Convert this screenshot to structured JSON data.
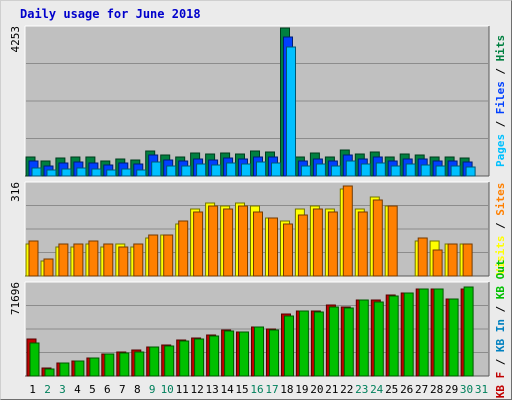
{
  "title": "Daily usage for June 2018",
  "colors": {
    "hits": "#008040",
    "files": "#0040ff",
    "pages": "#00c0ff",
    "visits": "#ffff00",
    "sites": "#ff8000",
    "kb_in": "#0080c0",
    "kb_out": "#00c000",
    "kb_f": "#c00000",
    "weekend_day_label": "#00805c",
    "day_label": "#000000",
    "plot_background": "#c0c0c0"
  },
  "chart_data": [
    {
      "type": "bar",
      "ymax_label": "4253",
      "ylim": [
        0,
        4253
      ],
      "grid": true,
      "legend_placement": "right",
      "legend": [
        {
          "label": "Pages",
          "color_key": "pages"
        },
        {
          "label": "Files",
          "color_key": "files"
        },
        {
          "label": "Hits",
          "color_key": "hits"
        }
      ],
      "categories": [
        "1",
        "2",
        "3",
        "4",
        "5",
        "6",
        "7",
        "8",
        "9",
        "10",
        "11",
        "12",
        "13",
        "14",
        "15",
        "16",
        "17",
        "18",
        "19",
        "20",
        "21",
        "22",
        "23",
        "24",
        "25",
        "26",
        "27",
        "28",
        "29",
        "30",
        "31"
      ],
      "series": [
        {
          "name": "Hits",
          "color_key": "hits",
          "values": [
            560,
            420,
            520,
            560,
            540,
            420,
            500,
            460,
            720,
            600,
            560,
            660,
            620,
            660,
            620,
            720,
            700,
            4253,
            560,
            660,
            540,
            760,
            640,
            700,
            560,
            640,
            600,
            560,
            560,
            520,
            0
          ]
        },
        {
          "name": "Files",
          "color_key": "files",
          "values": [
            420,
            300,
            380,
            400,
            380,
            320,
            380,
            340,
            600,
            460,
            440,
            500,
            460,
            520,
            480,
            560,
            540,
            4000,
            420,
            500,
            420,
            600,
            500,
            560,
            440,
            500,
            480,
            440,
            440,
            400,
            0
          ]
        },
        {
          "name": "Pages",
          "color_key": "pages",
          "values": [
            220,
            160,
            200,
            220,
            200,
            170,
            200,
            180,
            400,
            300,
            280,
            340,
            320,
            360,
            340,
            400,
            380,
            3700,
            280,
            340,
            280,
            420,
            340,
            380,
            300,
            340,
            320,
            300,
            300,
            260,
            0
          ]
        }
      ]
    },
    {
      "type": "bar",
      "ymax_label": "316",
      "ylim": [
        0,
        316
      ],
      "grid": true,
      "legend_placement": "right",
      "legend": [
        {
          "label": "Visits",
          "color_key": "visits"
        },
        {
          "label": "Sites",
          "color_key": "sites"
        }
      ],
      "categories": [
        "1",
        "2",
        "3",
        "4",
        "5",
        "6",
        "7",
        "8",
        "9",
        "10",
        "11",
        "12",
        "13",
        "14",
        "15",
        "16",
        "17",
        "18",
        "19",
        "20",
        "21",
        "22",
        "23",
        "24",
        "25",
        "26",
        "27",
        "28",
        "29",
        "30",
        "31"
      ],
      "series": [
        {
          "name": "Visits",
          "color_key": "visits",
          "values": [
            110,
            50,
            100,
            100,
            110,
            100,
            110,
            100,
            130,
            140,
            180,
            230,
            250,
            240,
            250,
            240,
            200,
            190,
            230,
            240,
            230,
            300,
            230,
            270,
            240,
            0,
            120,
            120,
            110,
            110,
            0
          ]
        },
        {
          "name": "Sites",
          "color_key": "sites",
          "values": [
            120,
            60,
            110,
            110,
            120,
            110,
            100,
            110,
            140,
            140,
            190,
            220,
            240,
            230,
            240,
            220,
            200,
            180,
            210,
            230,
            220,
            310,
            220,
            260,
            240,
            0,
            130,
            90,
            110,
            110,
            0
          ]
        }
      ]
    },
    {
      "type": "bar",
      "ymax_label": "71696",
      "ylim": [
        0,
        71696
      ],
      "grid": true,
      "legend_placement": "right",
      "legend": [
        {
          "label": "KB F",
          "color_key": "kb_f"
        },
        {
          "label": "KB In",
          "color_key": "kb_in"
        },
        {
          "label": "KB Out",
          "color_key": "kb_out"
        }
      ],
      "categories": [
        "1",
        "2",
        "3",
        "4",
        "5",
        "6",
        "7",
        "8",
        "9",
        "10",
        "11",
        "12",
        "13",
        "14",
        "15",
        "16",
        "17",
        "18",
        "19",
        "20",
        "21",
        "22",
        "23",
        "24",
        "25",
        "26",
        "27",
        "28",
        "29",
        "30",
        "31"
      ],
      "series": [
        {
          "name": "KB F",
          "color_key": "kb_f",
          "values": [
            28500,
            6000,
            10500,
            12000,
            14000,
            17000,
            19000,
            20000,
            22500,
            24500,
            28000,
            29500,
            32000,
            36000,
            34000,
            38000,
            37000,
            48000,
            51000,
            51000,
            55000,
            54000,
            59000,
            59000,
            63000,
            65000,
            68000,
            68000,
            60000,
            68000,
            0
          ]
        },
        {
          "name": "KB Out",
          "color_key": "kb_out",
          "values": [
            26000,
            5500,
            10500,
            12000,
            14000,
            17000,
            18000,
            19000,
            22500,
            23500,
            27000,
            29000,
            31000,
            35000,
            34000,
            38000,
            36000,
            47000,
            51000,
            50000,
            54000,
            53000,
            59000,
            58000,
            62000,
            65000,
            68000,
            68000,
            60000,
            69000,
            0
          ]
        }
      ]
    }
  ],
  "day_labels": [
    {
      "text": "1",
      "weekend": false
    },
    {
      "text": "2",
      "weekend": true
    },
    {
      "text": "3",
      "weekend": true
    },
    {
      "text": "4",
      "weekend": false
    },
    {
      "text": "5",
      "weekend": false
    },
    {
      "text": "6",
      "weekend": false
    },
    {
      "text": "7",
      "weekend": false
    },
    {
      "text": "8",
      "weekend": false
    },
    {
      "text": "9",
      "weekend": true
    },
    {
      "text": "10",
      "weekend": true
    },
    {
      "text": "11",
      "weekend": false
    },
    {
      "text": "12",
      "weekend": false
    },
    {
      "text": "13",
      "weekend": false
    },
    {
      "text": "14",
      "weekend": false
    },
    {
      "text": "15",
      "weekend": false
    },
    {
      "text": "16",
      "weekend": true
    },
    {
      "text": "17",
      "weekend": true
    },
    {
      "text": "18",
      "weekend": false
    },
    {
      "text": "19",
      "weekend": false
    },
    {
      "text": "20",
      "weekend": false
    },
    {
      "text": "21",
      "weekend": false
    },
    {
      "text": "22",
      "weekend": false
    },
    {
      "text": "23",
      "weekend": true
    },
    {
      "text": "24",
      "weekend": true
    },
    {
      "text": "25",
      "weekend": false
    },
    {
      "text": "26",
      "weekend": false
    },
    {
      "text": "27",
      "weekend": false
    },
    {
      "text": "28",
      "weekend": false
    },
    {
      "text": "29",
      "weekend": false
    },
    {
      "text": "30",
      "weekend": true
    },
    {
      "text": "31",
      "weekend": true
    }
  ]
}
